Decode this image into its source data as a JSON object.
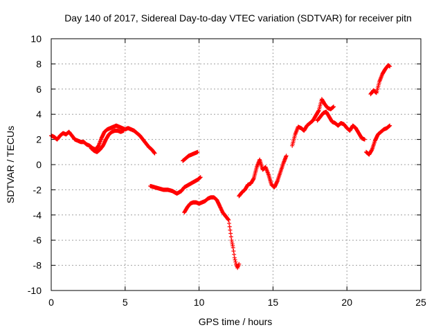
{
  "chart_data": {
    "type": "scatter",
    "title": "Day 140 of 2017, Sidereal Day-to-day VTEC variation (SDTVAR) for receiver pitn",
    "xlabel": "GPS time / hours",
    "ylabel": "SDTVAR / TECUs",
    "xlim": [
      0,
      25
    ],
    "ylim": [
      -10,
      10
    ],
    "xticks": [
      0,
      5,
      10,
      15,
      20,
      25
    ],
    "yticks": [
      -10,
      -8,
      -6,
      -4,
      -2,
      0,
      2,
      4,
      6,
      8,
      10
    ],
    "grid": true,
    "marker": "+",
    "color": "#ff0000",
    "series": [
      {
        "name": "SDTVAR",
        "segments": [
          {
            "x": [
              0.0,
              0.2,
              0.4,
              0.6,
              0.8,
              1.0,
              1.2,
              1.4,
              1.6,
              1.8,
              2.0,
              2.2,
              2.4,
              2.6,
              2.8,
              3.0,
              3.2,
              3.4,
              3.6,
              3.8,
              4.0,
              4.2,
              4.4,
              4.6,
              4.8,
              5.0,
              5.2,
              5.4,
              5.6,
              5.8,
              6.0,
              6.2,
              6.4,
              6.6,
              6.8,
              7.0
            ],
            "y": [
              2.3,
              2.2,
              2.0,
              2.3,
              2.5,
              2.4,
              2.6,
              2.3,
              2.0,
              1.9,
              1.8,
              1.8,
              1.6,
              1.5,
              1.3,
              1.2,
              1.5,
              2.1,
              2.6,
              2.8,
              2.9,
              3.0,
              3.1,
              3.0,
              2.9,
              2.8,
              2.9,
              2.8,
              2.7,
              2.5,
              2.3,
              2.0,
              1.7,
              1.4,
              1.2,
              0.9
            ]
          },
          {
            "x": [
              2.7,
              2.9,
              3.1,
              3.3,
              3.5,
              3.7,
              3.9,
              4.1,
              4.3,
              4.5,
              4.7,
              4.9
            ],
            "y": [
              1.3,
              1.1,
              1.0,
              1.2,
              1.5,
              2.0,
              2.4,
              2.6,
              2.7,
              2.7,
              2.6,
              2.7
            ]
          },
          {
            "x": [
              6.7,
              7.0,
              7.3,
              7.6,
              7.9,
              8.2,
              8.5,
              8.8,
              9.0,
              9.3,
              9.6,
              9.9,
              10.1
            ],
            "y": [
              -1.7,
              -1.8,
              -1.9,
              -2.0,
              -2.0,
              -2.1,
              -2.3,
              -2.1,
              -1.8,
              -1.6,
              -1.4,
              -1.2,
              -1.0
            ]
          },
          {
            "x": [
              8.9,
              9.1,
              9.3,
              9.5,
              9.7,
              9.9
            ],
            "y": [
              0.3,
              0.5,
              0.7,
              0.8,
              0.9,
              1.0
            ]
          },
          {
            "x": [
              9.0,
              9.2,
              9.4,
              9.6,
              9.8,
              10.0,
              10.2,
              10.4,
              10.6,
              10.8,
              11.0,
              11.2,
              11.4,
              11.6,
              11.8,
              12.0,
              12.1,
              12.2,
              12.3,
              12.4,
              12.5,
              12.6,
              12.7
            ],
            "y": [
              -3.8,
              -3.4,
              -3.1,
              -3.0,
              -3.0,
              -3.1,
              -3.0,
              -2.9,
              -2.7,
              -2.6,
              -2.6,
              -2.8,
              -3.3,
              -3.8,
              -4.1,
              -4.4,
              -5.2,
              -6.0,
              -6.6,
              -7.4,
              -7.9,
              -8.2,
              -7.9
            ]
          },
          {
            "x": [
              12.7,
              12.9,
              13.1,
              13.3,
              13.5,
              13.7,
              13.9,
              14.1,
              14.3,
              14.5,
              14.7,
              14.9,
              15.1,
              15.3,
              15.5,
              15.7,
              15.9
            ],
            "y": [
              -2.5,
              -2.2,
              -2.0,
              -1.6,
              -1.5,
              -1.1,
              -0.2,
              0.4,
              -0.4,
              -0.2,
              -0.8,
              -1.6,
              -1.8,
              -1.3,
              -0.6,
              0.1,
              0.7
            ]
          },
          {
            "x": [
              16.3,
              16.5,
              16.7,
              16.9,
              17.1,
              17.3,
              17.5,
              17.7,
              17.9,
              18.1,
              18.3,
              18.5,
              18.7,
              18.9,
              19.1
            ],
            "y": [
              1.5,
              2.4,
              3.0,
              2.9,
              2.7,
              3.1,
              3.3,
              3.5,
              3.9,
              4.3,
              5.2,
              4.8,
              4.5,
              4.4,
              4.6
            ]
          },
          {
            "x": [
              18.0,
              18.2,
              18.4,
              18.6,
              18.8,
              19.0,
              19.2,
              19.4,
              19.6,
              19.8,
              20.0,
              20.2,
              20.4,
              20.6,
              20.8,
              21.0,
              21.2
            ],
            "y": [
              3.5,
              3.8,
              4.1,
              4.2,
              3.8,
              3.4,
              3.3,
              3.1,
              3.3,
              3.2,
              2.9,
              2.7,
              3.1,
              2.9,
              2.5,
              2.1,
              2.0
            ]
          },
          {
            "x": [
              21.3,
              21.5,
              21.7,
              21.9,
              22.1,
              22.3,
              22.5,
              22.7,
              22.9
            ],
            "y": [
              1.0,
              0.8,
              1.2,
              1.9,
              2.4,
              2.6,
              2.8,
              2.9,
              3.1
            ]
          },
          {
            "x": [
              21.6,
              21.8,
              22.0,
              22.2,
              22.4,
              22.6,
              22.8,
              22.9
            ],
            "y": [
              5.6,
              5.9,
              5.7,
              6.6,
              7.2,
              7.6,
              7.9,
              7.8
            ]
          }
        ]
      }
    ]
  }
}
